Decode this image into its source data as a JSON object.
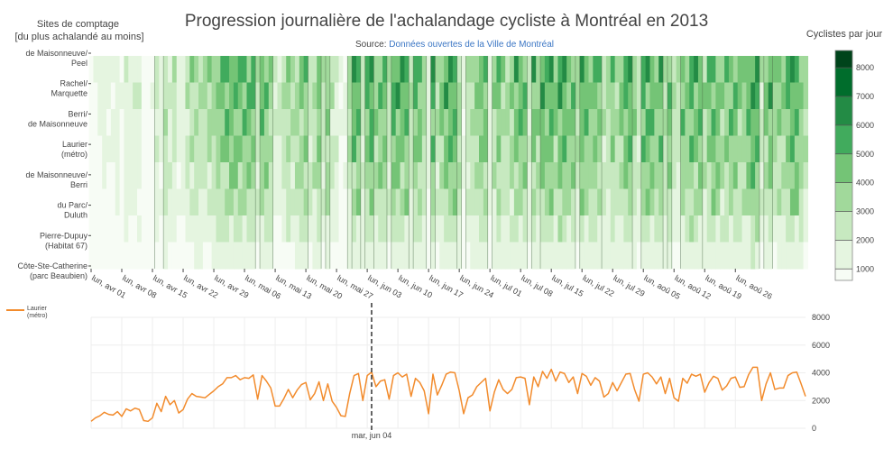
{
  "header": {
    "title": "Progression journalière de l'achalandage cycliste à Montréal en 2013",
    "source_prefix": "Source: ",
    "source_link": "Données ouvertes de la Ville de Montréal"
  },
  "chart_data": [
    {
      "type": "heatmap",
      "style": "filled contour",
      "title": "Progression journalière de l'achalandage cycliste à Montréal en 2013",
      "ylabel_lines": [
        "Sites de comptage",
        "[du plus achalandé au moins]"
      ],
      "colorbar_title": "Cyclistes par jour",
      "colorbar_ticks": [
        1000,
        2000,
        3000,
        4000,
        5000,
        6000,
        7000,
        8000
      ],
      "colorscale": [
        "#f7fcf5",
        "#e5f5e0",
        "#c7e9c0",
        "#a1d99b",
        "#74c476",
        "#41ab5d",
        "#238b45",
        "#006d2c",
        "#00441b"
      ],
      "x_start": "2013-04-01",
      "x_end": "2013-08-31",
      "x_ticks": [
        "lun, avr 01",
        "lun, avr 08",
        "lun, avr 15",
        "lun, avr 22",
        "lun, avr 29",
        "lun, mai 06",
        "lun, mai 13",
        "lun, mai 20",
        "lun, mai 27",
        "lun, jun 03",
        "lun, jun 10",
        "lun, jun 17",
        "lun, jun 24",
        "lun, jul 01",
        "lun, jul 08",
        "lun, jul 15",
        "lun, jul 22",
        "lun, jul 29",
        "lun, aoû 05",
        "lun, aoû 12",
        "lun, aoû 19",
        "lun, aoû 26"
      ],
      "sites": [
        {
          "label": [
            "de Maisonneuve/",
            "Peel"
          ],
          "scale": 1.12
        },
        {
          "label": [
            "Rachel/",
            "Marquette"
          ],
          "scale": 1.05
        },
        {
          "label": [
            "Berri/",
            "de Maisonneuve"
          ],
          "scale": 0.98
        },
        {
          "label": [
            "Laurier",
            "(métro)"
          ],
          "scale": 0.92
        },
        {
          "label": [
            "de Maisonneuve/",
            "Berri"
          ],
          "scale": 0.82
        },
        {
          "label": [
            "du Parc/",
            "Duluth"
          ],
          "scale": 0.72
        },
        {
          "label": [
            "Pierre-Dupuy",
            "(Habitat 67)"
          ],
          "scale": 0.52
        },
        {
          "label": [
            "Côte-Ste-Catherine",
            "(parc Beaubien)"
          ],
          "scale": 0.35
        }
      ]
    },
    {
      "type": "line",
      "legend_entry": [
        "Laurier",
        "(métro)"
      ],
      "series_color": "#f28b2c",
      "ylim": [
        0,
        8000
      ],
      "y_ticks": [
        0,
        2000,
        4000,
        6000,
        8000
      ],
      "x_start": "2013-04-01",
      "hover_label": "mar, jun 04",
      "values": [
        500,
        750,
        900,
        1150,
        1000,
        950,
        1200,
        850,
        1400,
        1250,
        1450,
        1350,
        550,
        500,
        750,
        1800,
        1200,
        2300,
        1700,
        2000,
        1100,
        1350,
        2100,
        2500,
        2300,
        2250,
        2200,
        2450,
        2700,
        3000,
        3200,
        3650,
        3650,
        3800,
        3500,
        3650,
        3600,
        3850,
        2100,
        3800,
        3400,
        2900,
        1600,
        1600,
        2150,
        2800,
        2200,
        2750,
        3150,
        3300,
        2050,
        2500,
        3350,
        2000,
        3200,
        1950,
        1500,
        900,
        850,
        2500,
        3800,
        3950,
        2000,
        3800,
        4050,
        3000,
        3400,
        3500,
        2100,
        3800,
        4000,
        3700,
        3900,
        2300,
        3600,
        3300,
        2700,
        1050,
        3900,
        2400,
        3100,
        3900,
        4050,
        4000,
        2700,
        1050,
        2200,
        2400,
        3000,
        3300,
        3600,
        1250,
        2600,
        3500,
        2800,
        2500,
        2800,
        3650,
        3700,
        3600,
        1700,
        3700,
        3000,
        4100,
        3600,
        4250,
        3400,
        4050,
        3950,
        3300,
        3700,
        2500,
        3950,
        3750,
        3100,
        3650,
        3400,
        2250,
        2500,
        3300,
        2700,
        3300,
        3900,
        3950,
        2800,
        1950,
        3900,
        4000,
        3700,
        3200,
        3700,
        2500,
        3600,
        2200,
        1950,
        3600,
        3250,
        3900,
        3750,
        3900,
        2600,
        3300,
        3750,
        3600,
        2750,
        3050,
        3600,
        3700,
        2950,
        3000,
        3850,
        4400,
        4400,
        2000,
        3200,
        4000,
        2800,
        2900,
        2900,
        3800,
        4000,
        4050,
        3200,
        2300
      ]
    }
  ]
}
